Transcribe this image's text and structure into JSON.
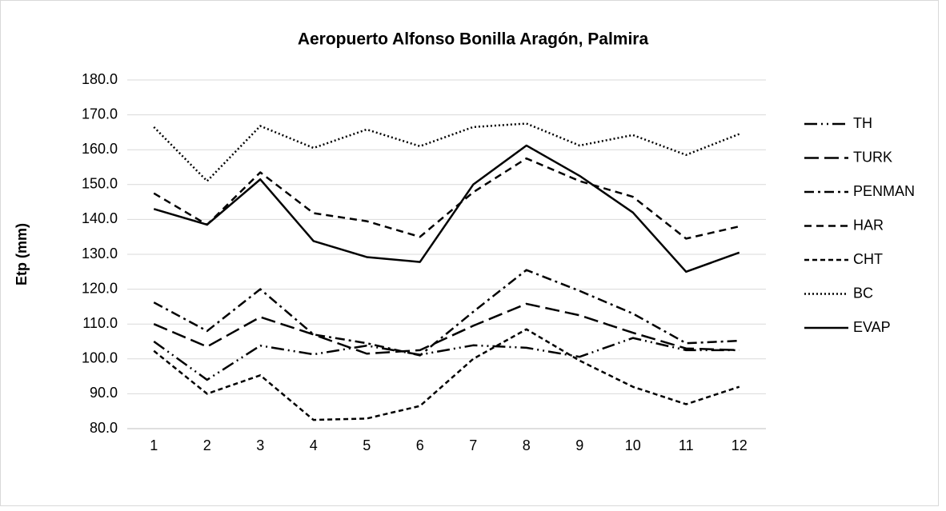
{
  "chart_data": {
    "type": "line",
    "title": "Aeropuerto Alfonso Bonilla Aragón, Palmira",
    "y_label": "Etp (mm)",
    "categories": [
      "1",
      "2",
      "3",
      "4",
      "5",
      "6",
      "7",
      "8",
      "9",
      "10",
      "11",
      "12"
    ],
    "ylim": [
      80,
      180
    ],
    "yticks": [
      {
        "value": 80,
        "label": "80.0"
      },
      {
        "value": 90,
        "label": "90.0"
      },
      {
        "value": 100,
        "label": "100.0"
      },
      {
        "value": 110,
        "label": "110.0"
      },
      {
        "value": 120,
        "label": "120.0"
      },
      {
        "value": 130,
        "label": "130.0"
      },
      {
        "value": 140,
        "label": "140.0"
      },
      {
        "value": 150,
        "label": "150.0"
      },
      {
        "value": 160,
        "label": "160.0"
      },
      {
        "value": 170,
        "label": "170.0"
      },
      {
        "value": 180,
        "label": "180.0"
      }
    ],
    "grid": true,
    "legend": "right",
    "series": [
      {
        "name": "TH",
        "color": "#000000",
        "dash": "16,5,2,5,2,5",
        "values": [
          105,
          94,
          103.8,
          101.3,
          103.8,
          101.2,
          103.9,
          103.2,
          100.6,
          106,
          102.5,
          102.5
        ]
      },
      {
        "name": "TURK",
        "color": "#000000",
        "dash": "18,7",
        "values": [
          110,
          103.5,
          112,
          107,
          101.5,
          102.5,
          109.5,
          115.8,
          112.5,
          107.5,
          103,
          102.5
        ]
      },
      {
        "name": "PENMAN",
        "color": "#000000",
        "dash": "12,5,3,5",
        "values": [
          116.2,
          108,
          120,
          107,
          104.5,
          101,
          113.5,
          125.5,
          119.5,
          113,
          104.5,
          105.2
        ]
      },
      {
        "name": "HAR",
        "color": "#000000",
        "dash": "9,6",
        "values": [
          147.5,
          138.5,
          153.5,
          141.8,
          139.5,
          135,
          147.8,
          157.5,
          151,
          146.5,
          134.5,
          138
        ]
      },
      {
        "name": "CHT",
        "color": "#000000",
        "dash": "6,4",
        "values": [
          102.3,
          90,
          95.3,
          82.5,
          82.9,
          86.5,
          100,
          108.5,
          99.5,
          92,
          87,
          92
        ]
      },
      {
        "name": "BC",
        "color": "#000000",
        "dash": "2,3",
        "values": [
          166.5,
          151,
          166.8,
          160.5,
          165.8,
          161,
          166.5,
          167.5,
          161.2,
          164.2,
          158.5,
          164.5
        ]
      },
      {
        "name": "EVAP",
        "color": "#000000",
        "dash": "none",
        "values": [
          143,
          138.5,
          151.5,
          133.8,
          129.2,
          127.8,
          150,
          161.2,
          152.5,
          142,
          125,
          130.5
        ]
      }
    ]
  }
}
